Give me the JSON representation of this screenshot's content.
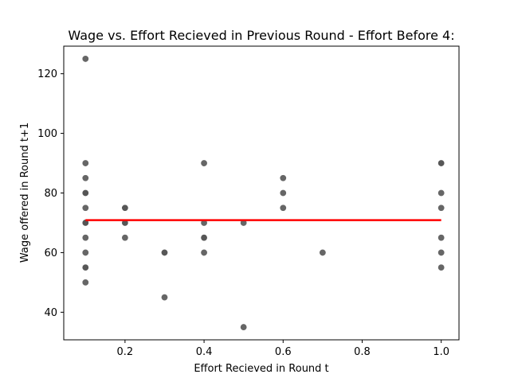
{
  "chart_data": {
    "type": "scatter",
    "title": "Wage vs. Effort Recieved in Previous Round - Effort Before 4:",
    "xlabel": "Effort Recieved in Round t",
    "ylabel": "Wage offered in Round t+1",
    "xlim": [
      0.045,
      1.045
    ],
    "ylim": [
      30.75,
      129.25
    ],
    "xticks": [
      0.2,
      0.4,
      0.6,
      0.8,
      1.0
    ],
    "xtick_labels": [
      "0.2",
      "0.4",
      "0.6",
      "0.8",
      "1.0"
    ],
    "yticks": [
      40,
      60,
      80,
      100,
      120
    ],
    "ytick_labels": [
      "40",
      "60",
      "80",
      "100",
      "120"
    ],
    "grid": false,
    "point_color": "#555555",
    "point_edge_color": "#ffffff",
    "point_opacity": 0.9,
    "points": [
      {
        "x": 0.1,
        "y": 125,
        "n": 1
      },
      {
        "x": 0.1,
        "y": 90,
        "n": 1
      },
      {
        "x": 0.1,
        "y": 85,
        "n": 1
      },
      {
        "x": 0.1,
        "y": 80,
        "n": 3
      },
      {
        "x": 0.1,
        "y": 75,
        "n": 1
      },
      {
        "x": 0.1,
        "y": 70,
        "n": 4
      },
      {
        "x": 0.1,
        "y": 65,
        "n": 1
      },
      {
        "x": 0.1,
        "y": 60,
        "n": 1
      },
      {
        "x": 0.1,
        "y": 55,
        "n": 2
      },
      {
        "x": 0.1,
        "y": 50,
        "n": 1
      },
      {
        "x": 0.2,
        "y": 75,
        "n": 2
      },
      {
        "x": 0.2,
        "y": 70,
        "n": 2
      },
      {
        "x": 0.2,
        "y": 65,
        "n": 1
      },
      {
        "x": 0.3,
        "y": 60,
        "n": 2
      },
      {
        "x": 0.3,
        "y": 45,
        "n": 1
      },
      {
        "x": 0.4,
        "y": 90,
        "n": 1
      },
      {
        "x": 0.4,
        "y": 70,
        "n": 1
      },
      {
        "x": 0.4,
        "y": 65,
        "n": 2
      },
      {
        "x": 0.4,
        "y": 60,
        "n": 1
      },
      {
        "x": 0.5,
        "y": 70,
        "n": 1
      },
      {
        "x": 0.5,
        "y": 35,
        "n": 1
      },
      {
        "x": 0.6,
        "y": 85,
        "n": 1
      },
      {
        "x": 0.6,
        "y": 80,
        "n": 1
      },
      {
        "x": 0.6,
        "y": 75,
        "n": 1
      },
      {
        "x": 0.7,
        "y": 60,
        "n": 1
      },
      {
        "x": 1.0,
        "y": 90,
        "n": 2
      },
      {
        "x": 1.0,
        "y": 80,
        "n": 1
      },
      {
        "x": 1.0,
        "y": 75,
        "n": 1
      },
      {
        "x": 1.0,
        "y": 65,
        "n": 1
      },
      {
        "x": 1.0,
        "y": 60,
        "n": 1
      },
      {
        "x": 1.0,
        "y": 55,
        "n": 1
      }
    ],
    "fit_line": {
      "x": [
        0.1,
        1.0
      ],
      "y": [
        70.9,
        70.9
      ],
      "color": "#ff0000"
    }
  }
}
